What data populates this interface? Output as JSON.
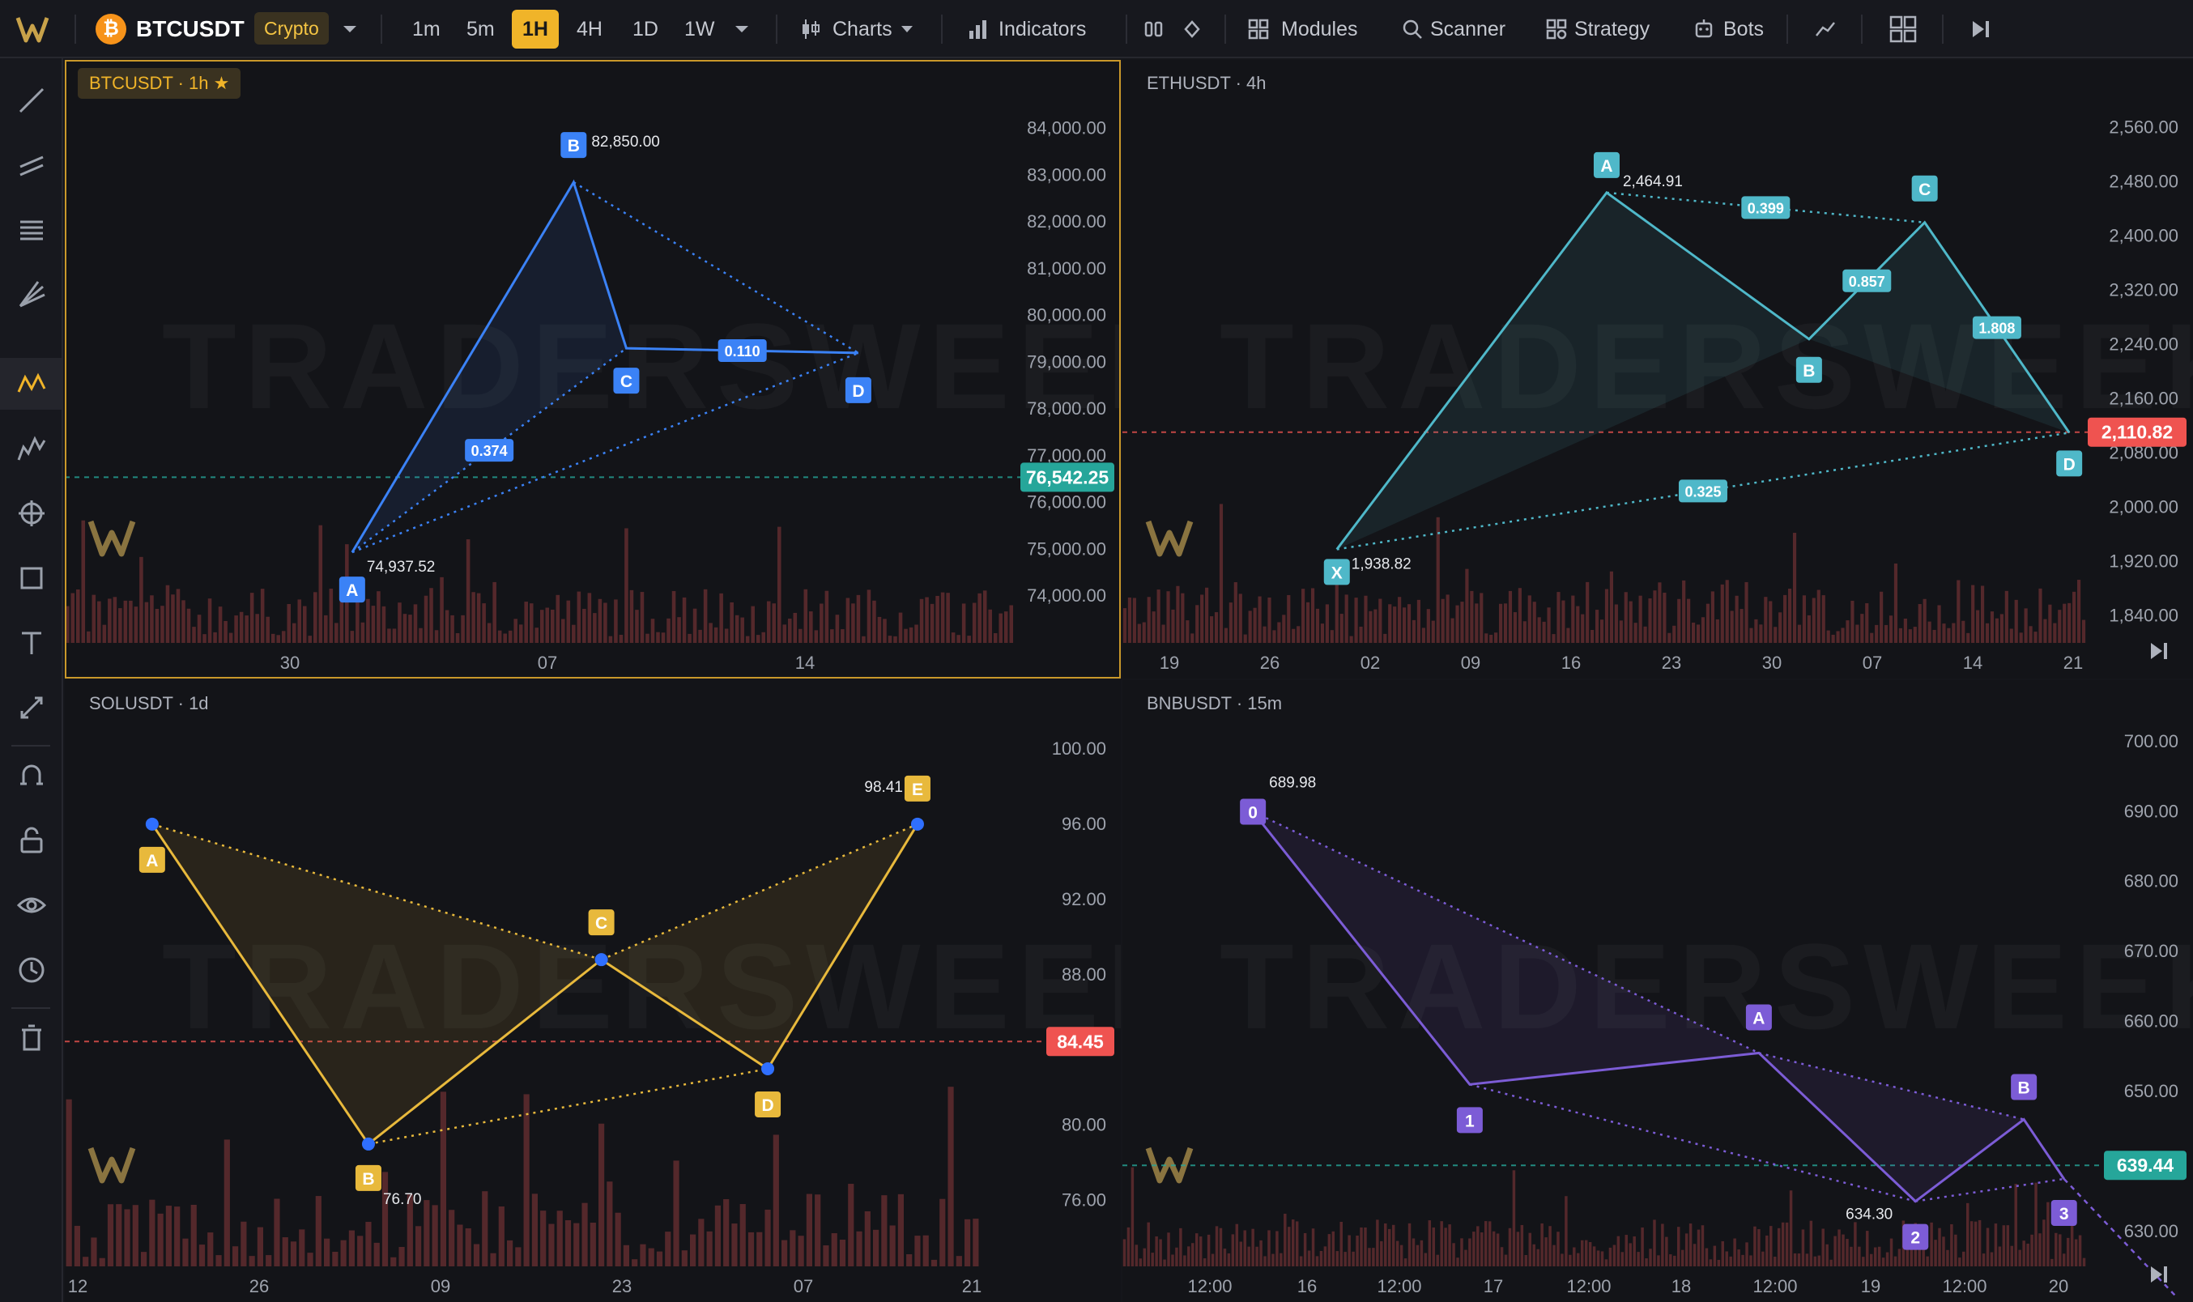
{
  "topbar": {
    "symbol": "BTCUSDT",
    "coin_glyph": "₿",
    "market_badge": "Crypto",
    "timeframes": [
      "1m",
      "5m",
      "1H",
      "4H",
      "1D",
      "1W"
    ],
    "active_timeframe": "1H",
    "charts_label": "Charts",
    "indicators_label": "Indicators",
    "modules_label": "Modules",
    "scanner_label": "Scanner",
    "strategy_label": "Strategy",
    "bots_label": "Bots"
  },
  "sidebar": {
    "tools": [
      "trend-line-icon",
      "parallel-channel-icon",
      "fib-levels-icon",
      "pitchfork-icon",
      "pattern-icon",
      "wave-icon",
      "crosshair-icon",
      "rectangle-icon",
      "text-icon",
      "measure-icon",
      "magnet-icon",
      "lock-icon",
      "eye-icon",
      "clock-icon",
      "trash-icon"
    ],
    "active_tool": "pattern-icon"
  },
  "watermark": "TRADERSWEEK",
  "panels": {
    "btc": {
      "symbol_label": "BTCUSDT · 1h ★",
      "price_ticks": [
        "84,000.00",
        "83,000.00",
        "82,000.00",
        "81,000.00",
        "80,000.00",
        "79,000.00",
        "78,000.00",
        "77,000.00",
        "76,000.00",
        "75,000.00",
        "74,000.00"
      ],
      "current_price": "76,542.25",
      "current_price_color": "#26a69a",
      "time_ticks": [
        "30",
        "07",
        "14"
      ],
      "pattern_points": [
        "A",
        "B",
        "C",
        "D"
      ],
      "pattern_values": {
        "A": "74,937.52",
        "B": "82,850.00"
      },
      "ratios": [
        "0.374",
        "0.110"
      ],
      "pattern_color": "#3b82f6"
    },
    "eth": {
      "symbol_label": "ETHUSDT · 4h",
      "price_ticks": [
        "2,560.00",
        "2,480.00",
        "2,400.00",
        "2,320.00",
        "2,240.00",
        "2,160.00",
        "2,080.00",
        "2,000.00",
        "1,920.00",
        "1,840.00"
      ],
      "current_price": "2,110.82",
      "current_price_color": "#ef5350",
      "time_ticks": [
        "19",
        "26",
        "02",
        "09",
        "16",
        "23",
        "30",
        "07",
        "14",
        "21"
      ],
      "pattern_points": [
        "X",
        "A",
        "B",
        "C",
        "D"
      ],
      "pattern_values": {
        "X": "1,938.82",
        "A": "2,464.91"
      },
      "ratios": [
        "0.399",
        "0.857",
        "1.808",
        "0.325"
      ],
      "pattern_color": "#4fb8c9"
    },
    "sol": {
      "symbol_label": "SOLUSDT · 1d",
      "price_ticks": [
        "100.00",
        "96.00",
        "92.00",
        "88.00",
        "84.00",
        "80.00",
        "76.00"
      ],
      "current_price": "84.45",
      "current_price_color": "#ef5350",
      "time_ticks": [
        "12",
        "26",
        "09",
        "23",
        "07",
        "21"
      ],
      "pattern_points": [
        "A",
        "B",
        "C",
        "D",
        "E"
      ],
      "pattern_values": {
        "B": "76.70",
        "E": "98.41"
      },
      "pattern_color": "#e8b93c"
    },
    "bnb": {
      "symbol_label": "BNBUSDT · 15m",
      "price_ticks": [
        "700.00",
        "690.00",
        "680.00",
        "670.00",
        "660.00",
        "650.00",
        "640.00",
        "630.00"
      ],
      "current_price": "639.44",
      "current_price_color": "#26a69a",
      "time_ticks": [
        "12:00",
        "16",
        "12:00",
        "17",
        "12:00",
        "18",
        "12:00",
        "19",
        "12:00",
        "20"
      ],
      "pattern_points": [
        "0",
        "1",
        "A",
        "2",
        "B",
        "3"
      ],
      "pattern_values": {
        "0": "689.98",
        "2": "634.30"
      },
      "pattern_color": "#7c5cd6"
    }
  }
}
